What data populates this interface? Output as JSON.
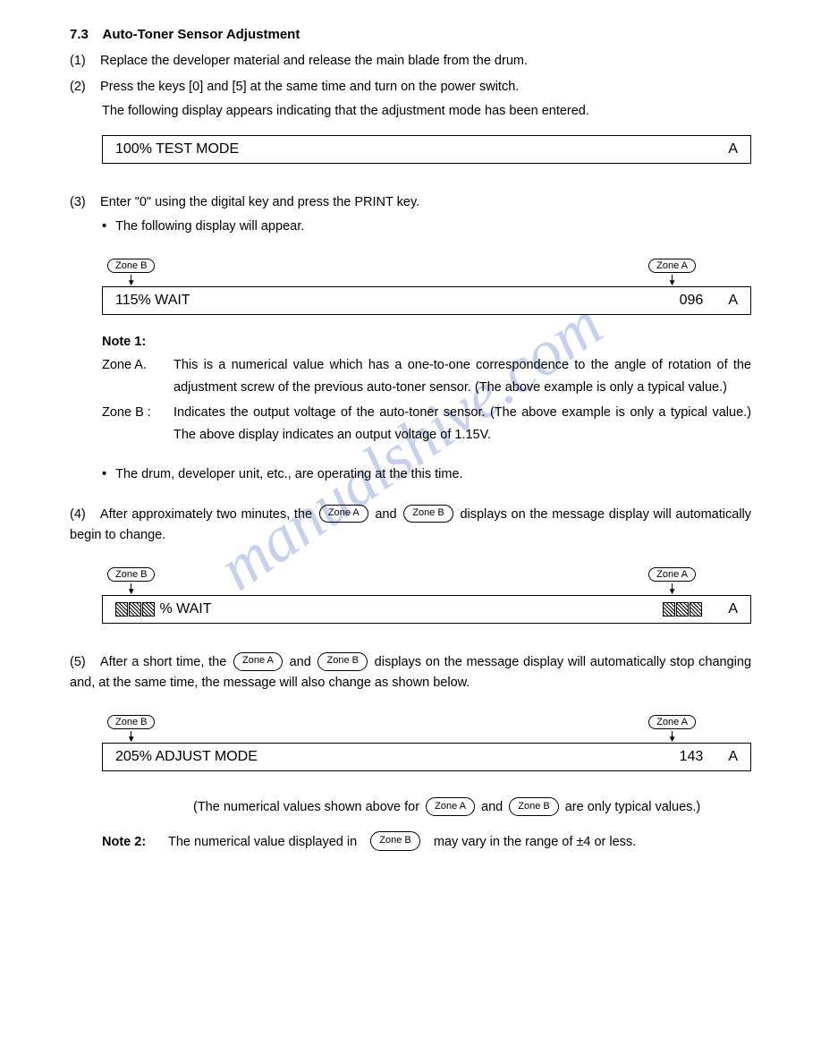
{
  "section": {
    "number": "7.3",
    "title": "Auto-Toner Sensor Adjustment"
  },
  "step1": {
    "num": "(1)",
    "text": "Replace the developer material and release the main blade from the drum."
  },
  "step2": {
    "num": "(2)",
    "line1": "Press the keys [0] and [5] at the same time and turn on the power switch.",
    "line2": "The following display appears indicating that the adjustment mode has been entered."
  },
  "display1": {
    "left": "100% TEST MODE",
    "rightA": "A"
  },
  "step3": {
    "num": "(3)",
    "text": "Enter \"0\" using the digital key and press the PRINT key.",
    "bullet": "The following display will appear."
  },
  "zones": {
    "a": "Zone A",
    "b": "Zone B"
  },
  "display2": {
    "left": "115% WAIT",
    "num": "096",
    "rightA": "A"
  },
  "note1": {
    "head": "Note 1:",
    "zoneA_label": "Zone A.",
    "zoneA_text": "This is a numerical value which has a one-to-one correspondence to the angle of rotation of the adjustment screw of the previous auto-toner sensor. (The above example is only a typical value.)",
    "zoneB_label": "Zone B :",
    "zoneB_text": "Indicates the output voltage of the auto-toner sensor. (The above example is only a typical value.) The above display indicates an output voltage of 1.15V."
  },
  "bullet_op": "The drum, developer unit, etc., are operating at the this time.",
  "step4": {
    "num": "(4)",
    "pre": "After approximately two minutes, the",
    "mid": "and",
    "post": "displays on the message display will automatically begin to change."
  },
  "display3": {
    "left_suffix": " % WAIT",
    "rightA": "A"
  },
  "step5": {
    "num": "(5)",
    "pre": "After a short time, the",
    "mid": "and",
    "post": "displays on the message display will automatically stop changing and, at the same time, the message will also change as shown below."
  },
  "display4": {
    "left": "205% ADJUST MODE",
    "num": "143",
    "rightA": "A"
  },
  "tail_para": {
    "pre": "(The numerical values shown above for",
    "mid": "and",
    "post": "are only typical values.)"
  },
  "note2": {
    "label": "Note 2:",
    "pre": "The numerical value displayed in",
    "post": "may vary in the range of ±4 or less."
  },
  "watermark": "manualshive.com"
}
